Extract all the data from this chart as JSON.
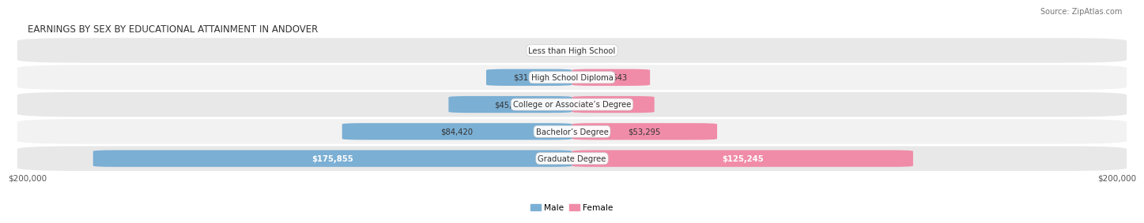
{
  "title": "EARNINGS BY SEX BY EDUCATIONAL ATTAINMENT IN ANDOVER",
  "source": "Source: ZipAtlas.com",
  "categories": [
    "Less than High School",
    "High School Diploma",
    "College or Associate’s Degree",
    "Bachelor’s Degree",
    "Graduate Degree"
  ],
  "male_values": [
    0,
    31500,
    45326,
    84420,
    175855
  ],
  "female_values": [
    0,
    28643,
    30250,
    53295,
    125245
  ],
  "max_value": 200000,
  "male_color": "#7bafd4",
  "female_color": "#f08ca8",
  "male_label": "Male",
  "female_label": "Female",
  "row_bg_colors": [
    "#e8e8e8",
    "#f2f2f2"
  ],
  "bar_height": 0.62,
  "title_fontsize": 8.5,
  "label_fontsize": 7.2,
  "tick_fontsize": 7.5,
  "source_fontsize": 7,
  "axis_label_left": "$200,000",
  "axis_label_right": "$200,000"
}
